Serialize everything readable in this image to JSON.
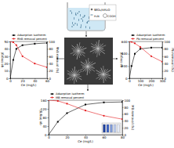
{
  "chart_data": [
    {
      "type": "line",
      "x_label": "Ce (mg/L)",
      "y_label": "qe (mg/g)",
      "y2_label": "RhB removal (%)",
      "x": [
        0,
        5,
        10,
        20,
        40,
        60
      ],
      "xlim": [
        0,
        60
      ],
      "xticks": [
        0,
        20,
        40,
        60
      ],
      "ylim": [
        0,
        50
      ],
      "yticks": [
        0,
        10,
        20,
        30,
        40,
        50
      ],
      "y2lim": [
        0,
        100
      ],
      "y2ticks": [
        0,
        20,
        40,
        60,
        80,
        100
      ],
      "legend": "top",
      "series": [
        {
          "name": "Adsorption isotherm",
          "color": "#000000",
          "marker": "square",
          "values": [
            0,
            25,
            40,
            45,
            47,
            48
          ]
        },
        {
          "name": "RhB removal percent",
          "color": "#e41a1c",
          "marker": "circle",
          "axis": "y2",
          "values": [
            100,
            98,
            90,
            60,
            40,
            30
          ]
        }
      ]
    },
    {
      "type": "line",
      "x_label": "Ce (mg/L)",
      "y_label": "qe (mg/g)",
      "y2_label": "Pb removal (%)",
      "x": [
        0,
        20,
        50,
        100,
        200,
        300
      ],
      "xlim": [
        0,
        300
      ],
      "xticks": [
        0,
        100,
        200,
        300
      ],
      "ylim": [
        0,
        600
      ],
      "yticks": [
        0,
        200,
        400,
        600
      ],
      "y2lim": [
        0,
        100
      ],
      "y2ticks": [
        0,
        20,
        40,
        60,
        80,
        100
      ],
      "legend": "top",
      "series": [
        {
          "name": "Adsorption isotherm",
          "color": "#000000",
          "marker": "square",
          "values": [
            0,
            200,
            400,
            480,
            500,
            500
          ]
        },
        {
          "name": "Pb removal percent",
          "color": "#e41a1c",
          "marker": "circle",
          "axis": "y2",
          "values": [
            100,
            99,
            95,
            85,
            60,
            45
          ]
        }
      ]
    },
    {
      "type": "line",
      "x_label": "Ce (mg/L)",
      "y_label": "qe (mg/g)",
      "y2_label": "MB removal (%)",
      "x": [
        0,
        10,
        20,
        40,
        60,
        80
      ],
      "xlim": [
        0,
        80
      ],
      "xticks": [
        0,
        20,
        40,
        60,
        80
      ],
      "ylim": [
        0,
        160
      ],
      "yticks": [
        0,
        40,
        80,
        120,
        160
      ],
      "y2lim": [
        0,
        100
      ],
      "y2ticks": [
        0,
        20,
        40,
        60,
        80,
        100
      ],
      "legend": "top",
      "series": [
        {
          "name": "Adsorption isotherm",
          "color": "#000000",
          "marker": "square",
          "values": [
            0,
            60,
            100,
            140,
            150,
            152
          ]
        },
        {
          "name": "MB removal percent",
          "color": "#e41a1c",
          "marker": "circle",
          "axis": "y2",
          "values": [
            100,
            98,
            90,
            70,
            55,
            45
          ]
        }
      ]
    }
  ],
  "diagram": {
    "labels": [
      "WO₃/nH₂O",
      "H₂N",
      "COOH"
    ]
  }
}
